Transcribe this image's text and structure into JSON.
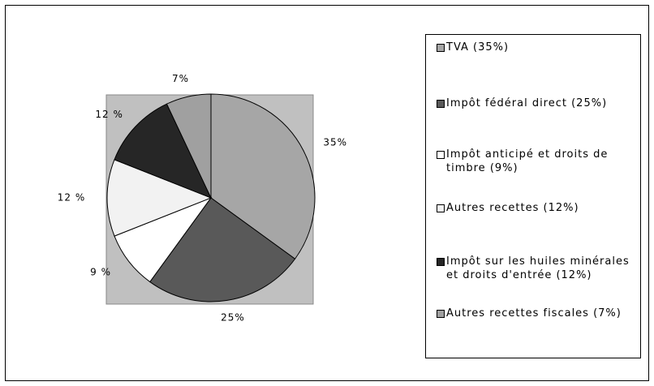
{
  "chart_data": {
    "type": "pie",
    "categories": [
      "TVA (35%)",
      "Impôt fédéral direct (25%)",
      "Impôt anticipé et droits de timbre (9%)",
      "Autres recettes (12%)",
      "Impôt sur les huiles minérales et droits d'entrée (12%)",
      "Autres recettes fiscales (7%)"
    ],
    "values": [
      35,
      25,
      9,
      12,
      12,
      7
    ],
    "value_labels": [
      "35%",
      "25%",
      "9 %",
      "12 %",
      "12 %",
      "7%"
    ],
    "colors": [
      "#a6a6a6",
      "#595959",
      "#ffffff",
      "#f2f2f2",
      "#262626",
      "#a0a0a0"
    ]
  }
}
